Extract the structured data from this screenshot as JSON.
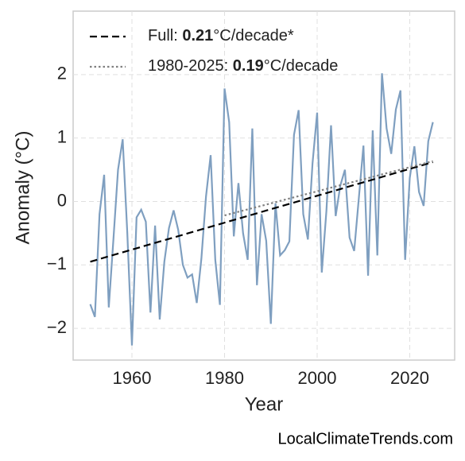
{
  "chart_data": {
    "type": "line",
    "x_label": "Year",
    "y_label": "Anomaly (°C)",
    "source": "LocalClimateTrends.com",
    "xlim": [
      1947.3,
      2029.7
    ],
    "ylim": [
      -2.5,
      3.0
    ],
    "xticks": [
      1960,
      1980,
      2000,
      2020
    ],
    "yticks": [
      {
        "value": -2,
        "label": "−2"
      },
      {
        "value": -1,
        "label": "−1"
      },
      0,
      1,
      2
    ],
    "grid": true,
    "legend": "upper left",
    "series": [
      {
        "color": "#7f9fc0",
        "style": "solid",
        "x": [
          1951,
          1952,
          1953,
          1954,
          1955,
          1956,
          1957,
          1958,
          1959,
          1960,
          1961,
          1962,
          1963,
          1964,
          1965,
          1966,
          1967,
          1968,
          1969,
          1970,
          1971,
          1972,
          1973,
          1974,
          1975,
          1976,
          1977,
          1978,
          1979,
          1980,
          1981,
          1982,
          1983,
          1984,
          1985,
          1986,
          1987,
          1988,
          1989,
          1990,
          1991,
          1992,
          1993,
          1994,
          1995,
          1996,
          1997,
          1998,
          1999,
          2000,
          2001,
          2002,
          2003,
          2004,
          2005,
          2006,
          2007,
          2008,
          2009,
          2010,
          2011,
          2012,
          2013,
          2014,
          2015,
          2016,
          2017,
          2018,
          2019,
          2020,
          2021,
          2022,
          2023,
          2024,
          2025
        ],
        "values": [
          -1.62,
          -1.82,
          -0.2,
          0.42,
          -1.67,
          -0.6,
          0.5,
          0.98,
          -0.5,
          -2.27,
          -0.25,
          -0.13,
          -0.32,
          -1.75,
          -0.38,
          -1.86,
          -0.95,
          -0.42,
          -0.14,
          -0.45,
          -1.0,
          -1.2,
          -1.15,
          -1.6,
          -0.9,
          0.08,
          0.73,
          -0.92,
          -1.63,
          1.78,
          1.25,
          -0.55,
          0.29,
          -0.5,
          -0.92,
          1.15,
          -1.32,
          -0.2,
          -0.62,
          -1.93,
          -0.03,
          -0.85,
          -0.77,
          -0.63,
          1.05,
          1.44,
          -0.2,
          -0.6,
          0.6,
          1.4,
          -1.12,
          -0.15,
          1.2,
          -0.23,
          0.25,
          0.5,
          -0.57,
          -0.78,
          0.05,
          0.88,
          -1.17,
          1.12,
          -0.85,
          2.02,
          1.15,
          0.75,
          1.45,
          1.75,
          -0.92,
          0.37,
          0.87,
          0.15,
          -0.07,
          0.95,
          1.25
        ]
      },
      {
        "name": "Full: 0.21°C/decade*",
        "color": "#000000",
        "style": "dashed",
        "x": [
          1951,
          2025
        ],
        "values": [
          -0.95,
          0.62
        ]
      },
      {
        "name": "1980-2025: 0.19°C/decade",
        "color": "#808080",
        "style": "dotted",
        "x": [
          1980,
          2025
        ],
        "values": [
          -0.22,
          0.635
        ]
      }
    ]
  }
}
